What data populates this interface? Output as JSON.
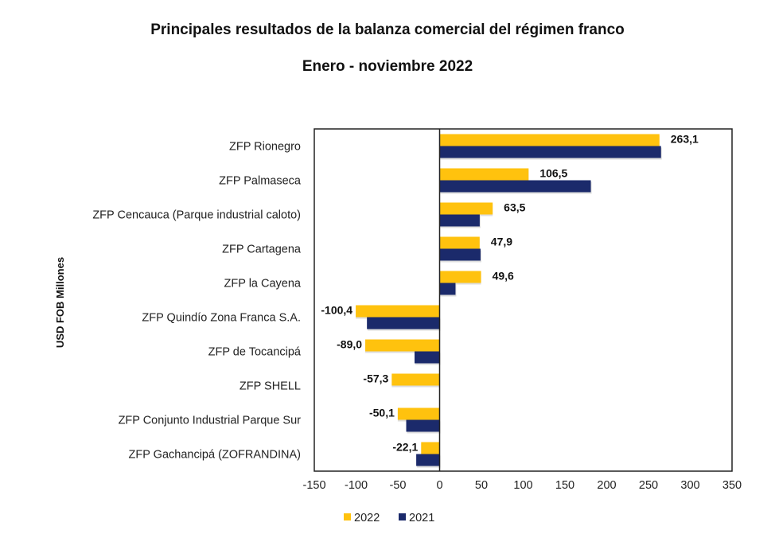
{
  "chart_data": {
    "type": "bar",
    "orientation": "horizontal",
    "title": "Principales resultados de la balanza comercial del régimen franco",
    "subtitle": "Enero - noviembre 2022",
    "xlabel": "",
    "ylabel": "USD FOB Millones",
    "xlim": [
      -150,
      350
    ],
    "xticks": [
      "-150",
      "-100",
      "-50",
      "0",
      "50",
      "100",
      "150",
      "200",
      "250",
      "300",
      "350"
    ],
    "grid": false,
    "legend": "bottom",
    "colors": {
      "2022": "#FFC20E",
      "2021": "#1B2A6B"
    },
    "categories": [
      "ZFP Rionegro",
      "ZFP Palmaseca",
      "ZFP Cencauca (Parque industrial caloto)",
      "ZFP Cartagena",
      "ZFP la Cayena",
      "ZFP Quindío Zona Franca S.A.",
      "ZFP de Tocancipá",
      "ZFP SHELL",
      "ZFP Conjunto Industrial Parque Sur",
      "ZFP Gachancipá (ZOFRANDINA)"
    ],
    "series": [
      {
        "name": "2022",
        "values": [
          263.1,
          106.5,
          63.5,
          47.9,
          49.6,
          -100.4,
          -89.0,
          -57.3,
          -50.1,
          -22.1
        ],
        "labels": [
          "263,1",
          "106,5",
          "63,5",
          "47,9",
          "49,6",
          "-100,4",
          "-89,0",
          "-57,3",
          "-50,1",
          "-22,1"
        ]
      },
      {
        "name": "2021",
        "values": [
          265,
          181,
          48,
          49,
          19,
          -87,
          -30,
          0,
          -40,
          -28
        ]
      }
    ]
  }
}
